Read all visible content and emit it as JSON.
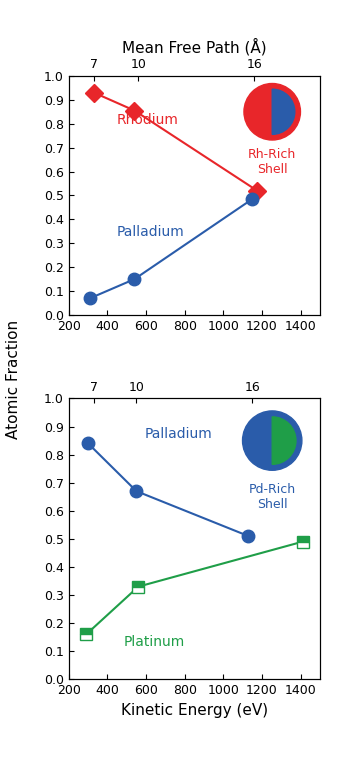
{
  "chart_data": [
    {
      "type": "line",
      "ylabel": "Atomic Fraction",
      "x2label": "Mean Free Path (Å)",
      "xlim": [
        200,
        1500
      ],
      "xticks": [
        200,
        400,
        600,
        800,
        1000,
        1200,
        1400
      ],
      "x2ticks": [
        {
          "value": 330,
          "label": "7"
        },
        {
          "value": 560,
          "label": "10"
        },
        {
          "value": 1160,
          "label": "16"
        }
      ],
      "ylim": [
        0,
        1.0
      ],
      "yticks": [
        {
          "value": 0,
          "label": "0.0"
        },
        0.1,
        0.2,
        0.3,
        0.4,
        0.5,
        0.6,
        0.7,
        0.8,
        0.9,
        {
          "value": 1.0,
          "label": "1.0"
        }
      ],
      "annotation": "Rh-Rich\nShell",
      "series": [
        {
          "name": "Rhodium",
          "color": "#e8262a",
          "marker": "diamond",
          "x": [
            330,
            540,
            1175
          ],
          "values": [
            0.93,
            0.855,
            0.52
          ]
        },
        {
          "name": "Palladium",
          "color": "#2a5caa",
          "marker": "circle",
          "x": [
            310,
            540,
            1150
          ],
          "values": [
            0.07,
            0.15,
            0.485
          ]
        }
      ]
    },
    {
      "type": "line",
      "ylabel": "Atomic Fraction",
      "xlabel": "Kinetic Energy (eV)",
      "xlim": [
        200,
        1500
      ],
      "xticks": [
        200,
        400,
        600,
        800,
        1000,
        1200,
        1400
      ],
      "x2ticks": [
        {
          "value": 330,
          "label": "7"
        },
        {
          "value": 550,
          "label": "10"
        },
        {
          "value": 1150,
          "label": "16"
        }
      ],
      "ylim": [
        0,
        1.0
      ],
      "yticks": [
        {
          "value": 0,
          "label": "0.0"
        },
        0.1,
        0.2,
        0.3,
        0.4,
        0.5,
        0.6,
        0.7,
        0.8,
        0.9,
        {
          "value": 1.0,
          "label": "1.0"
        }
      ],
      "annotation": "Pd-Rich\nShell",
      "series": [
        {
          "name": "Palladium",
          "color": "#2a5caa",
          "marker": "circle",
          "x": [
            300,
            550,
            1130
          ],
          "values": [
            0.84,
            0.67,
            0.51
          ]
        },
        {
          "name": "Platinum",
          "color": "#1f9e48",
          "marker": "square_half",
          "x": [
            290,
            560,
            1410
          ],
          "values": [
            0.16,
            0.33,
            0.49
          ]
        }
      ]
    }
  ]
}
